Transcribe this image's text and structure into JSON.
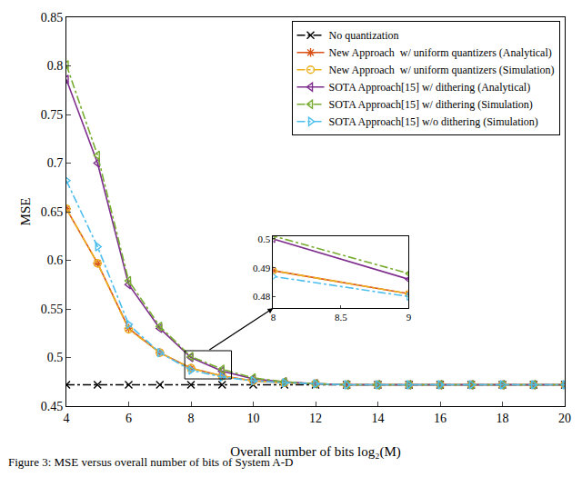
{
  "chart_data": {
    "type": "line",
    "x_label": "Overall number of bits log₂(M)",
    "y_label": "MSE",
    "caption": "Figure 3: MSE versus overall number of bits of System A-D",
    "x": [
      4,
      5,
      6,
      7,
      8,
      9,
      10,
      11,
      12,
      13,
      14,
      15,
      16,
      17,
      18,
      19,
      20
    ],
    "xlim": [
      4,
      20
    ],
    "xticks": [
      4,
      6,
      8,
      10,
      12,
      14,
      16,
      18,
      20
    ],
    "ylim": [
      0.45,
      0.85
    ],
    "yticks": [
      0.45,
      0.5,
      0.55,
      0.6,
      0.65,
      0.7,
      0.75,
      0.8,
      0.85
    ],
    "grid": false,
    "legend": "top-right",
    "series": [
      {
        "name": "No quantization",
        "color": "#000000",
        "line_style": "dashdot",
        "marker": "x",
        "values": [
          0.472,
          0.472,
          0.472,
          0.472,
          0.472,
          0.472,
          0.472,
          0.472,
          0.472,
          0.472,
          0.472,
          0.472,
          0.472,
          0.472,
          0.472,
          0.472,
          0.472
        ]
      },
      {
        "name": "New Approach  w/ uniform quantizers (Analytical)",
        "color": "#D95319",
        "line_style": "solid",
        "marker": "asterisk",
        "values": [
          0.653,
          0.597,
          0.53,
          0.505,
          0.489,
          0.481,
          0.476,
          0.474,
          0.473,
          0.472,
          0.472,
          0.472,
          0.472,
          0.472,
          0.472,
          0.472,
          0.472
        ]
      },
      {
        "name": "New Approach  w/ uniform quantizers (Simulation)",
        "color": "#EDB120",
        "line_style": "dashdot",
        "marker": "circle",
        "values": [
          0.653,
          0.597,
          0.529,
          0.505,
          0.489,
          0.481,
          0.476,
          0.474,
          0.473,
          0.472,
          0.472,
          0.472,
          0.472,
          0.472,
          0.472,
          0.472,
          0.472
        ]
      },
      {
        "name": "SOTA Approach[15] w/ dithering (Analytical)",
        "color": "#7E2F8E",
        "line_style": "solid",
        "marker": "triangle-left",
        "values": [
          0.786,
          0.7,
          0.575,
          0.53,
          0.5,
          0.486,
          0.478,
          0.475,
          0.473,
          0.472,
          0.472,
          0.472,
          0.472,
          0.472,
          0.472,
          0.472,
          0.472
        ]
      },
      {
        "name": "SOTA Approach[15] w/ dithering (Simulation)",
        "color": "#77AC30",
        "line_style": "dashdot",
        "marker": "triangle-left",
        "values": [
          0.801,
          0.708,
          0.579,
          0.532,
          0.501,
          0.488,
          0.479,
          0.475,
          0.473,
          0.472,
          0.472,
          0.472,
          0.472,
          0.472,
          0.472,
          0.472,
          0.472
        ]
      },
      {
        "name": "SOTA Approach[15] w/o dithering (Simulation)",
        "color": "#4DBEEE",
        "line_style": "dashdot",
        "marker": "triangle-right",
        "values": [
          0.682,
          0.614,
          0.534,
          0.505,
          0.487,
          0.48,
          0.476,
          0.474,
          0.473,
          0.472,
          0.472,
          0.472,
          0.472,
          0.472,
          0.472,
          0.472,
          0.472
        ]
      }
    ],
    "zoom_box": {
      "xlim": [
        7.8,
        9.3
      ],
      "ylim": [
        0.478,
        0.507
      ]
    },
    "inset": {
      "xlim": [
        8,
        9
      ],
      "ylim": [
        0.476,
        0.501
      ],
      "xticks": [
        8,
        8.5,
        9
      ],
      "yticks": [
        0.48,
        0.49,
        0.5
      ]
    }
  }
}
